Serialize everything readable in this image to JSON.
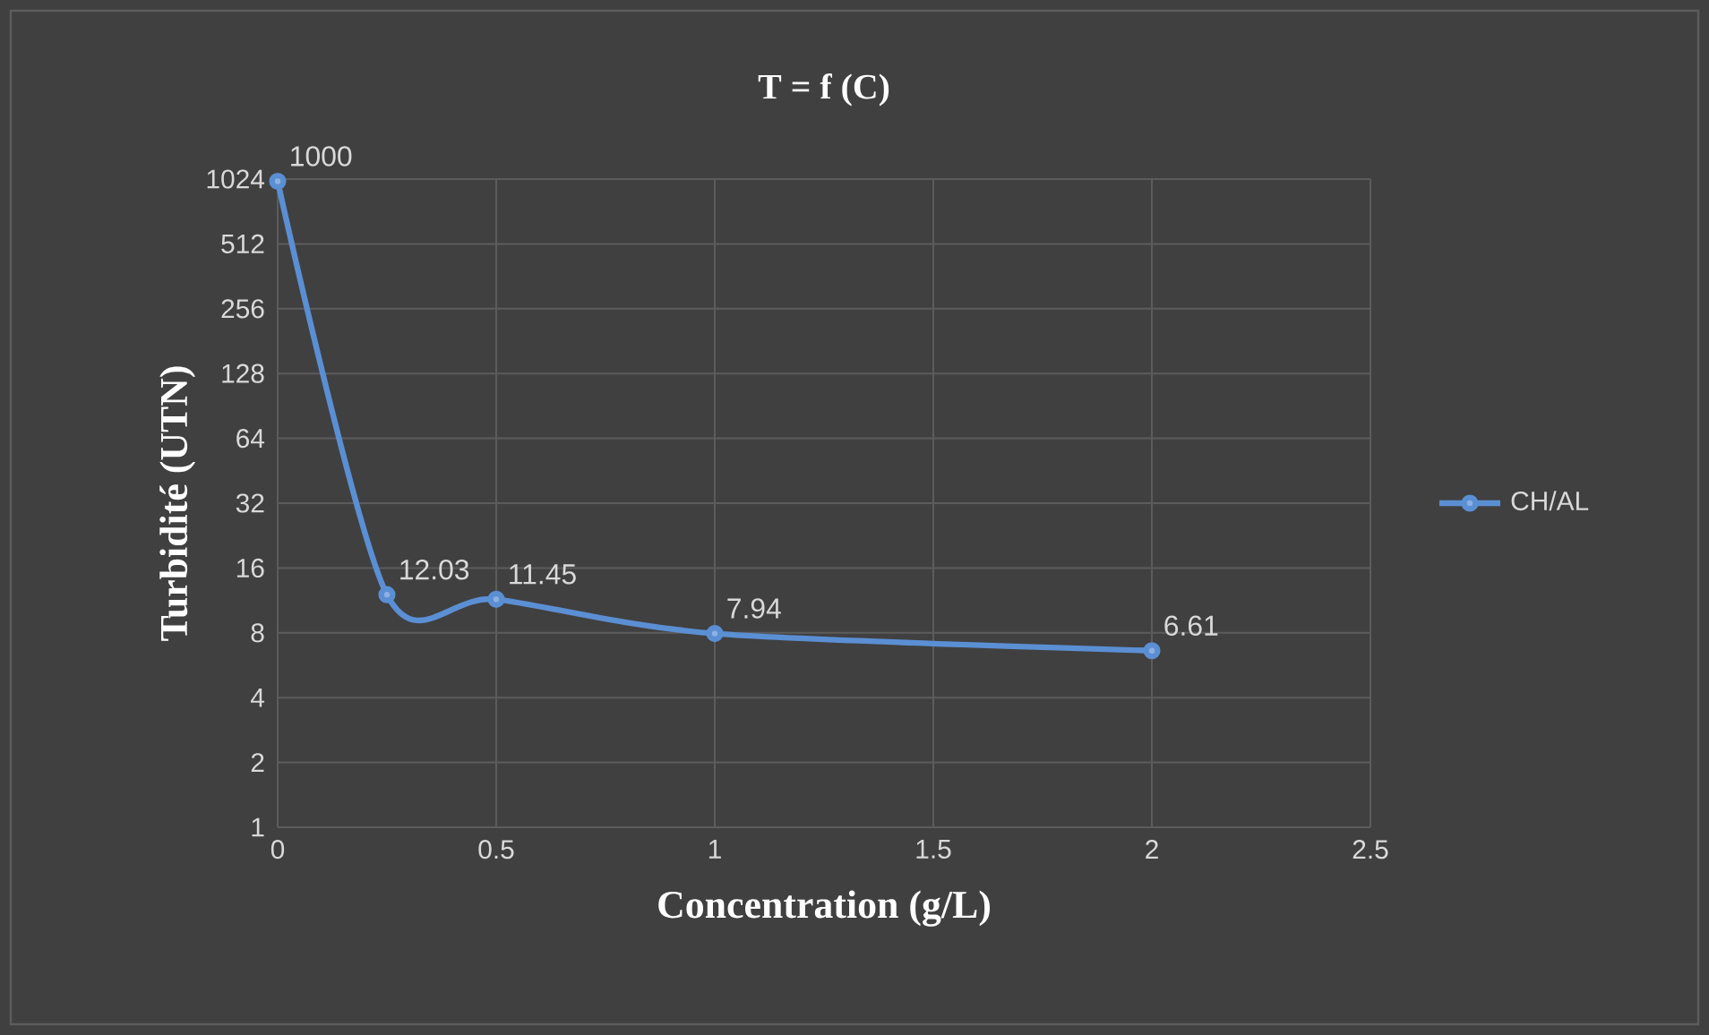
{
  "chart_data": {
    "type": "line",
    "title": "T = f (C)",
    "xlabel": "Concentration (g/L)",
    "ylabel": "Turbidité (UTN)",
    "series": [
      {
        "name": "CH/AL",
        "color": "#5b8fd4",
        "x": [
          0,
          0.25,
          0.5,
          1,
          2
        ],
        "values": [
          1000,
          12.03,
          11.45,
          7.94,
          6.61
        ]
      }
    ],
    "log": "y",
    "xlim": [
      0,
      2.5
    ],
    "xticks": [
      0,
      0.5,
      1,
      1.5,
      2,
      2.5
    ],
    "ylim": [
      1,
      1024
    ],
    "yticks": [
      1,
      2,
      4,
      8,
      16,
      32,
      64,
      128,
      256,
      512,
      1024
    ],
    "grid": true,
    "legend": "right",
    "marker": "circle",
    "data_labels": true
  }
}
